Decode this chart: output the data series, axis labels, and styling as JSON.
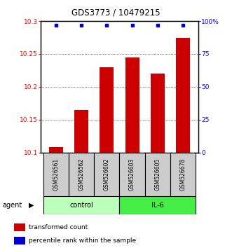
{
  "title": "GDS3773 / 10479215",
  "samples": [
    "GSM526561",
    "GSM526562",
    "GSM526602",
    "GSM526603",
    "GSM526605",
    "GSM526678"
  ],
  "red_values": [
    10.108,
    10.165,
    10.23,
    10.245,
    10.22,
    10.275
  ],
  "blue_values": [
    97,
    97,
    97,
    97,
    97,
    97
  ],
  "ylim_left": [
    10.1,
    10.3
  ],
  "ylim_right": [
    0,
    100
  ],
  "yticks_left": [
    10.1,
    10.15,
    10.2,
    10.25,
    10.3
  ],
  "yticks_right": [
    0,
    25,
    50,
    75,
    100
  ],
  "ytick_labels_left": [
    "10.1",
    "10.15",
    "10.2",
    "10.25",
    "10.3"
  ],
  "ytick_labels_right": [
    "0",
    "25",
    "50",
    "75",
    "100%"
  ],
  "groups": [
    {
      "label": "control",
      "samples": [
        0,
        1,
        2
      ],
      "color": "#bbffbb"
    },
    {
      "label": "IL-6",
      "samples": [
        3,
        4,
        5
      ],
      "color": "#44ee44"
    }
  ],
  "agent_label": "agent",
  "bar_color": "#cc0000",
  "dot_color": "#0000cc",
  "legend_red": "transformed count",
  "legend_blue": "percentile rank within the sample"
}
